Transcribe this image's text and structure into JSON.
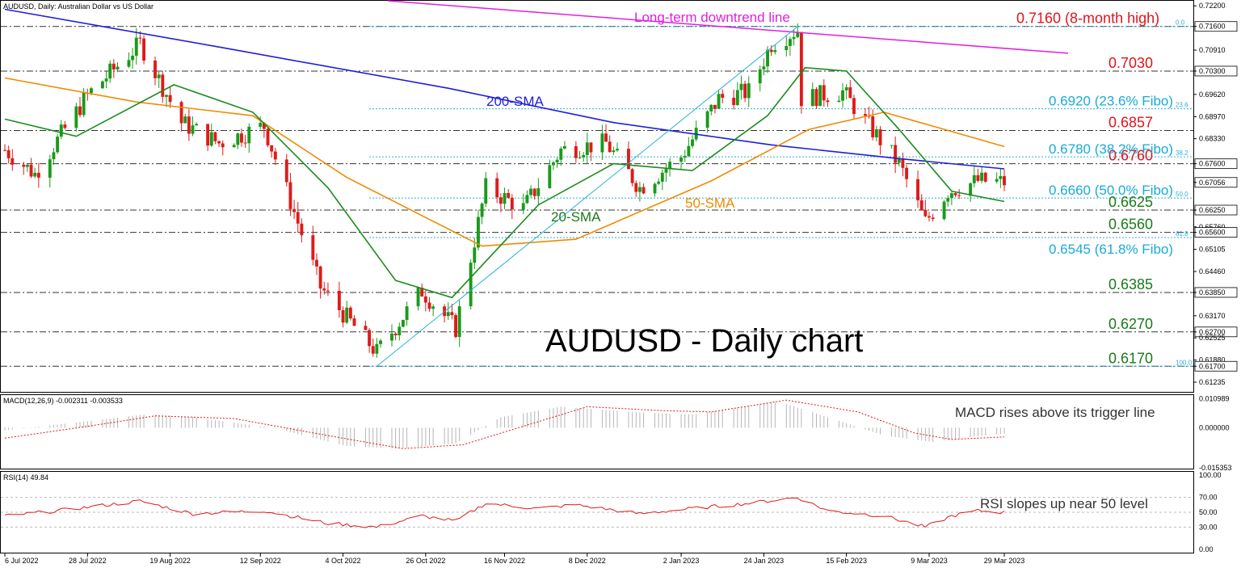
{
  "header": {
    "symbol_line": "AUDUSD, Daily:  Australian Dollar vs US Dollar",
    "macd_label": "MACD(12,26,9) -0.002311 -0.003533",
    "rsi_label": "RSI(14) 49.84"
  },
  "chart_data": {
    "type": "candlestick",
    "title": "AUDUSD - Daily chart",
    "price_axis": {
      "range": [
        0.61,
        0.723
      ],
      "ticks": [
        "0.72200",
        "0.71600",
        "0.70910",
        "0.70300",
        "0.69620",
        "0.68970",
        "0.68330",
        "0.67600",
        "0.67056",
        "0.66250",
        "0.65760",
        "0.65600",
        "0.65105",
        "0.64460",
        "0.63850",
        "0.63170",
        "0.62700",
        "0.62525",
        "0.61880",
        "0.61700",
        "0.61235"
      ]
    },
    "x_axis": {
      "labels": [
        "6 Jul 2022",
        "28 Jul 2022",
        "19 Aug 2022",
        "12 Sep 2022",
        "4 Oct 2022",
        "26 Oct 2022",
        "16 Nov 2022",
        "8 Dec 2022",
        "2 Jan 2023",
        "24 Jan 2023",
        "15 Feb 2023",
        "9 Mar 2023",
        "29 Mar 2023"
      ],
      "start": "2022-07-06",
      "end": "2023-03-29"
    },
    "close_anchors": [
      [
        "2022-07-06",
        0.68
      ],
      [
        "2022-07-14",
        0.673
      ],
      [
        "2022-07-28",
        0.696
      ],
      [
        "2022-08-11",
        0.711
      ],
      [
        "2022-08-22",
        0.688
      ],
      [
        "2022-09-01",
        0.682
      ],
      [
        "2022-09-13",
        0.687
      ],
      [
        "2022-09-28",
        0.64
      ],
      [
        "2022-10-13",
        0.621
      ],
      [
        "2022-10-25",
        0.639
      ],
      [
        "2022-11-03",
        0.628
      ],
      [
        "2022-11-11",
        0.669
      ],
      [
        "2022-11-21",
        0.663
      ],
      [
        "2022-12-01",
        0.68
      ],
      [
        "2022-12-13",
        0.682
      ],
      [
        "2022-12-22",
        0.669
      ],
      [
        "2023-01-02",
        0.678
      ],
      [
        "2023-01-12",
        0.695
      ],
      [
        "2023-01-20",
        0.697
      ],
      [
        "2023-01-26",
        0.711
      ],
      [
        "2023-02-02",
        0.715
      ],
      [
        "2023-02-03",
        0.695
      ],
      [
        "2023-02-14",
        0.697
      ],
      [
        "2023-02-21",
        0.687
      ],
      [
        "2023-03-01",
        0.676
      ],
      [
        "2023-03-08",
        0.659
      ],
      [
        "2023-03-14",
        0.668
      ],
      [
        "2023-03-22",
        0.671
      ],
      [
        "2023-03-29",
        0.6706
      ]
    ],
    "series": [
      {
        "name": "200-SMA",
        "color": "#1f1fd6",
        "points": [
          [
            "2022-07-06",
            0.721
          ],
          [
            "2022-09-01",
            0.71
          ],
          [
            "2022-11-01",
            0.698
          ],
          [
            "2022-12-15",
            0.688
          ],
          [
            "2023-01-26",
            0.6815
          ],
          [
            "2023-03-01",
            0.6775
          ],
          [
            "2023-03-29",
            0.6745
          ]
        ]
      },
      {
        "name": "50-SMA",
        "color": "#f08a00",
        "points": [
          [
            "2022-07-06",
            0.701
          ],
          [
            "2022-08-10",
            0.694
          ],
          [
            "2022-09-10",
            0.69
          ],
          [
            "2022-10-05",
            0.672
          ],
          [
            "2022-11-10",
            0.652
          ],
          [
            "2022-12-05",
            0.654
          ],
          [
            "2023-01-10",
            0.671
          ],
          [
            "2023-02-05",
            0.686
          ],
          [
            "2023-02-25",
            0.691
          ],
          [
            "2023-03-29",
            0.681
          ]
        ]
      },
      {
        "name": "20-SMA",
        "color": "#1a8c1a",
        "points": [
          [
            "2022-07-06",
            0.689
          ],
          [
            "2022-07-25",
            0.684
          ],
          [
            "2022-08-20",
            0.699
          ],
          [
            "2022-09-10",
            0.691
          ],
          [
            "2022-09-30",
            0.669
          ],
          [
            "2022-10-18",
            0.642
          ],
          [
            "2022-11-02",
            0.637
          ],
          [
            "2022-11-25",
            0.664
          ],
          [
            "2022-12-15",
            0.676
          ],
          [
            "2023-01-05",
            0.674
          ],
          [
            "2023-01-25",
            0.69
          ],
          [
            "2023-02-04",
            0.704
          ],
          [
            "2023-02-15",
            0.703
          ],
          [
            "2023-03-01",
            0.686
          ],
          [
            "2023-03-15",
            0.668
          ],
          [
            "2023-03-29",
            0.665
          ]
        ]
      }
    ],
    "horizontal_levels": [
      {
        "value": 0.716,
        "label": "0.7160 (8-month high)",
        "color": "#e0141c"
      },
      {
        "value": 0.703,
        "label": "0.7030",
        "color": "#e0141c"
      },
      {
        "value": 0.6857,
        "label": "0.6857",
        "color": "#e0141c"
      },
      {
        "value": 0.676,
        "label": "0.6760",
        "color": "#e0141c"
      },
      {
        "value": 0.6625,
        "label": "0.6625",
        "color": "#1a7a1a"
      },
      {
        "value": 0.656,
        "label": "0.6560",
        "color": "#1a7a1a"
      },
      {
        "value": 0.6385,
        "label": "0.6385",
        "color": "#1a7a1a"
      },
      {
        "value": 0.627,
        "label": "0.6270",
        "color": "#1a7a1a"
      },
      {
        "value": 0.617,
        "label": "0.6170",
        "color": "#1a7a1a"
      }
    ],
    "fibo_levels": [
      {
        "value": 0.716,
        "pct": "0.0",
        "label": ""
      },
      {
        "value": 0.692,
        "pct": "23.6",
        "label": "0.6920 (23.6% Fibo)"
      },
      {
        "value": 0.678,
        "pct": "38.2",
        "label": "0.6780 (38.2% Fibo)"
      },
      {
        "value": 0.666,
        "pct": "50.0",
        "label": "0.6660 (50.0% Fibo)"
      },
      {
        "value": 0.6545,
        "pct": "61.8",
        "label": "0.6545 (61.8% Fibo)"
      },
      {
        "value": 0.617,
        "pct": "100.0",
        "label": ""
      }
    ],
    "annotations": {
      "downtrend": "Long-term downtrend line",
      "sma200": "200-SMA",
      "sma50": "50-SMA",
      "sma20": "20-SMA",
      "macd_note": "MACD rises above its trigger line",
      "rsi_note": "RSI slopes up near 50 level"
    },
    "macd": {
      "ticks": [
        "0.010989",
        "0.000000",
        "-0.015353"
      ],
      "range": [
        -0.015,
        0.0115
      ],
      "anchors": [
        [
          "2022-07-06",
          -0.001
        ],
        [
          "2022-07-25",
          0.002
        ],
        [
          "2022-08-12",
          0.005
        ],
        [
          "2022-08-25",
          0.004
        ],
        [
          "2022-09-15",
          0.0
        ],
        [
          "2022-10-05",
          -0.007
        ],
        [
          "2022-10-18",
          -0.008
        ],
        [
          "2022-11-03",
          -0.006
        ],
        [
          "2022-11-15",
          0.004
        ],
        [
          "2022-12-01",
          0.008
        ],
        [
          "2022-12-20",
          0.006
        ],
        [
          "2023-01-05",
          0.005
        ],
        [
          "2023-01-28",
          0.01
        ],
        [
          "2023-02-10",
          0.004
        ],
        [
          "2023-02-25",
          -0.003
        ],
        [
          "2023-03-10",
          -0.0055
        ],
        [
          "2023-03-20",
          -0.0035
        ],
        [
          "2023-03-29",
          -0.0023
        ]
      ],
      "signal_anchors": [
        [
          "2022-07-06",
          -0.004
        ],
        [
          "2022-07-28",
          0.0005
        ],
        [
          "2022-08-15",
          0.0045
        ],
        [
          "2022-09-05",
          0.0035
        ],
        [
          "2022-09-30",
          -0.003
        ],
        [
          "2022-10-20",
          -0.008
        ],
        [
          "2022-11-05",
          -0.0065
        ],
        [
          "2022-11-22",
          0.001
        ],
        [
          "2022-12-08",
          0.008
        ],
        [
          "2022-12-28",
          0.0065
        ],
        [
          "2023-01-10",
          0.006
        ],
        [
          "2023-01-30",
          0.0105
        ],
        [
          "2023-02-18",
          0.006
        ],
        [
          "2023-03-05",
          -0.002
        ],
        [
          "2023-03-15",
          -0.0045
        ],
        [
          "2023-03-29",
          -0.0035
        ]
      ]
    },
    "rsi": {
      "ticks": [
        "100.00",
        "70.00",
        "50.00",
        "30.00",
        "0.00"
      ],
      "range": [
        0,
        100
      ],
      "anchors": [
        [
          "2022-07-06",
          45
        ],
        [
          "2022-07-20",
          52
        ],
        [
          "2022-08-11",
          65
        ],
        [
          "2022-08-25",
          48
        ],
        [
          "2022-09-13",
          52
        ],
        [
          "2022-09-30",
          35
        ],
        [
          "2022-10-13",
          30
        ],
        [
          "2022-10-25",
          45
        ],
        [
          "2022-11-03",
          38
        ],
        [
          "2022-11-11",
          62
        ],
        [
          "2022-11-25",
          55
        ],
        [
          "2022-12-05",
          60
        ],
        [
          "2022-12-22",
          48
        ],
        [
          "2023-01-05",
          55
        ],
        [
          "2023-01-20",
          62
        ],
        [
          "2023-02-02",
          70
        ],
        [
          "2023-02-10",
          52
        ],
        [
          "2023-02-25",
          45
        ],
        [
          "2023-03-08",
          30
        ],
        [
          "2023-03-15",
          45
        ],
        [
          "2023-03-22",
          52
        ],
        [
          "2023-03-29",
          49.84
        ]
      ]
    }
  }
}
